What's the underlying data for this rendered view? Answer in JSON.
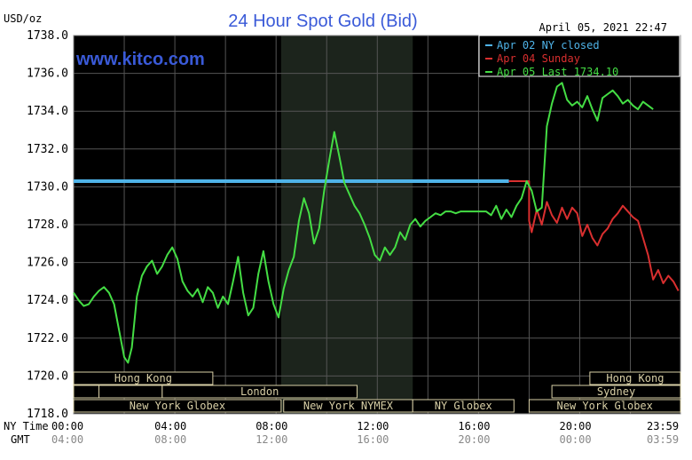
{
  "chart_data": {
    "type": "line",
    "title": "24 Hour Spot Gold (Bid)",
    "unit_label": "USD/oz",
    "timestamp": "April 05, 2021 22:47",
    "watermark": "www.kitco.com",
    "ylim": [
      1718.0,
      1738.0
    ],
    "y_ticks": [
      "1738.0",
      "1736.0",
      "1734.0",
      "1732.0",
      "1730.0",
      "1728.0",
      "1726.0",
      "1724.0",
      "1722.0",
      "1720.0",
      "1718.0"
    ],
    "x_row_ny_label": "NY Time",
    "x_row_gmt_label": "GMT",
    "x_ticks_ny": [
      "00:00",
      "04:00",
      "08:00",
      "12:00",
      "16:00",
      "20:00",
      "23:59"
    ],
    "x_ticks_gmt": [
      "04:00",
      "08:00",
      "12:00",
      "16:00",
      "20:00",
      "00:00",
      "03:59"
    ],
    "legend": [
      {
        "label": "Apr 02 NY closed",
        "color": "#4fb3e8"
      },
      {
        "label": "Apr 04 Sunday",
        "color": "#d92f2f"
      },
      {
        "label": "Apr 05 Last 1734.10",
        "color": "#44dd44"
      }
    ],
    "sessions": [
      {
        "label": "Hong Kong",
        "row": 0,
        "start": 0,
        "end": 5.5
      },
      {
        "label": "Hong Kong",
        "row": 0,
        "start": 20.4,
        "end": 23.98
      },
      {
        "label": "",
        "row": 1,
        "start": 0,
        "end": 1.0
      },
      {
        "label": "",
        "row": 1,
        "start": 1.0,
        "end": 3.5
      },
      {
        "label": "London",
        "row": 1,
        "start": 3.5,
        "end": 11.2
      },
      {
        "label": "Sydney",
        "row": 1,
        "start": 18.9,
        "end": 23.98
      },
      {
        "label": "New York Globex",
        "row": 2,
        "start": 0,
        "end": 8.2
      },
      {
        "label": "New York NYMEX",
        "row": 2,
        "start": 8.3,
        "end": 13.4
      },
      {
        "label": "NY Globex",
        "row": 2,
        "start": 13.4,
        "end": 17.4
      },
      {
        "label": "New York Globex",
        "row": 2,
        "start": 18.0,
        "end": 23.98
      }
    ],
    "highlight_range": [
      8.2,
      13.4
    ],
    "series": [
      {
        "name": "Apr 02 NY closed",
        "color": "#4fb3e8",
        "x": [
          0.0,
          17.2
        ],
        "y": [
          1730.3,
          1730.3
        ]
      },
      {
        "name": "Apr 04 Sunday",
        "color": "#d92f2f",
        "x": [
          17.2,
          18.0,
          18.0,
          18.1,
          18.3,
          18.5,
          18.7,
          18.9,
          19.1,
          19.3,
          19.5,
          19.7,
          19.9,
          20.1,
          20.3,
          20.5,
          20.7,
          20.9,
          21.1,
          21.3,
          21.5,
          21.7,
          21.9,
          22.1,
          22.3,
          22.5,
          22.7,
          22.9,
          23.1,
          23.3,
          23.5,
          23.7,
          23.9
        ],
        "y": [
          1730.3,
          1730.3,
          1728.2,
          1727.6,
          1728.8,
          1728.0,
          1729.2,
          1728.5,
          1728.1,
          1728.9,
          1728.3,
          1728.9,
          1728.6,
          1727.4,
          1728.0,
          1727.3,
          1726.9,
          1727.5,
          1727.8,
          1728.3,
          1728.6,
          1729.0,
          1728.7,
          1728.4,
          1728.2,
          1727.3,
          1726.4,
          1725.1,
          1725.6,
          1724.9,
          1725.3,
          1725.0,
          1724.5
        ]
      },
      {
        "name": "Apr 05 Last 1734.10",
        "color": "#44dd44",
        "x": [
          0.0,
          0.2,
          0.4,
          0.6,
          0.8,
          1.0,
          1.2,
          1.4,
          1.6,
          1.8,
          2.0,
          2.15,
          2.3,
          2.5,
          2.7,
          2.9,
          3.1,
          3.3,
          3.5,
          3.7,
          3.9,
          4.1,
          4.3,
          4.5,
          4.7,
          4.9,
          5.1,
          5.3,
          5.5,
          5.7,
          5.9,
          6.1,
          6.3,
          6.5,
          6.7,
          6.9,
          7.1,
          7.3,
          7.5,
          7.7,
          7.9,
          8.1,
          8.3,
          8.5,
          8.7,
          8.9,
          9.1,
          9.3,
          9.5,
          9.7,
          9.9,
          10.1,
          10.3,
          10.5,
          10.7,
          10.9,
          11.1,
          11.3,
          11.5,
          11.7,
          11.9,
          12.1,
          12.3,
          12.5,
          12.7,
          12.9,
          13.1,
          13.3,
          13.5,
          13.7,
          13.9,
          14.1,
          14.3,
          14.5,
          14.7,
          14.9,
          15.1,
          15.3,
          15.5,
          15.7,
          15.9,
          16.1,
          16.3,
          16.5,
          16.7,
          16.9,
          17.1,
          17.3,
          17.5,
          17.7,
          17.9,
          18.1,
          18.3,
          18.5,
          18.7,
          18.9,
          19.1,
          19.3,
          19.5,
          19.7,
          19.9,
          20.1,
          20.3,
          20.5,
          20.7,
          20.9,
          21.1,
          21.3,
          21.5,
          21.7,
          21.9,
          22.1,
          22.3,
          22.5,
          22.7,
          22.9
        ],
        "y": [
          1724.4,
          1724.0,
          1723.7,
          1723.8,
          1724.2,
          1724.5,
          1724.7,
          1724.4,
          1723.8,
          1722.4,
          1721.0,
          1720.7,
          1721.5,
          1724.2,
          1725.3,
          1725.8,
          1726.1,
          1725.4,
          1725.8,
          1726.4,
          1726.8,
          1726.2,
          1725.0,
          1724.5,
          1724.2,
          1724.6,
          1723.9,
          1724.7,
          1724.4,
          1723.6,
          1724.2,
          1723.8,
          1725.0,
          1726.3,
          1724.4,
          1723.2,
          1723.6,
          1725.4,
          1726.6,
          1725.0,
          1723.8,
          1723.1,
          1724.6,
          1725.6,
          1726.3,
          1728.2,
          1729.4,
          1728.6,
          1727.0,
          1727.8,
          1729.8,
          1731.4,
          1732.9,
          1731.6,
          1730.2,
          1729.6,
          1729.0,
          1728.6,
          1728.0,
          1727.3,
          1726.4,
          1726.1,
          1726.8,
          1726.4,
          1726.8,
          1727.6,
          1727.2,
          1728.0,
          1728.3,
          1727.9,
          1728.2,
          1728.4,
          1728.6,
          1728.5,
          1728.7,
          1728.7,
          1728.6,
          1728.7,
          1728.7,
          1728.7,
          1728.7,
          1728.7,
          1728.7,
          1728.5,
          1729.0,
          1728.3,
          1728.8,
          1728.4,
          1729.0,
          1729.4,
          1730.3,
          1729.8,
          1728.7,
          1728.9,
          1733.2,
          1734.4,
          1735.3,
          1735.5,
          1734.6,
          1734.3,
          1734.5,
          1734.2,
          1734.8,
          1734.1,
          1733.5,
          1734.7,
          1734.9,
          1735.1,
          1734.8,
          1734.4,
          1734.6,
          1734.3,
          1734.1,
          1734.5,
          1734.3,
          1734.1
        ]
      }
    ]
  }
}
